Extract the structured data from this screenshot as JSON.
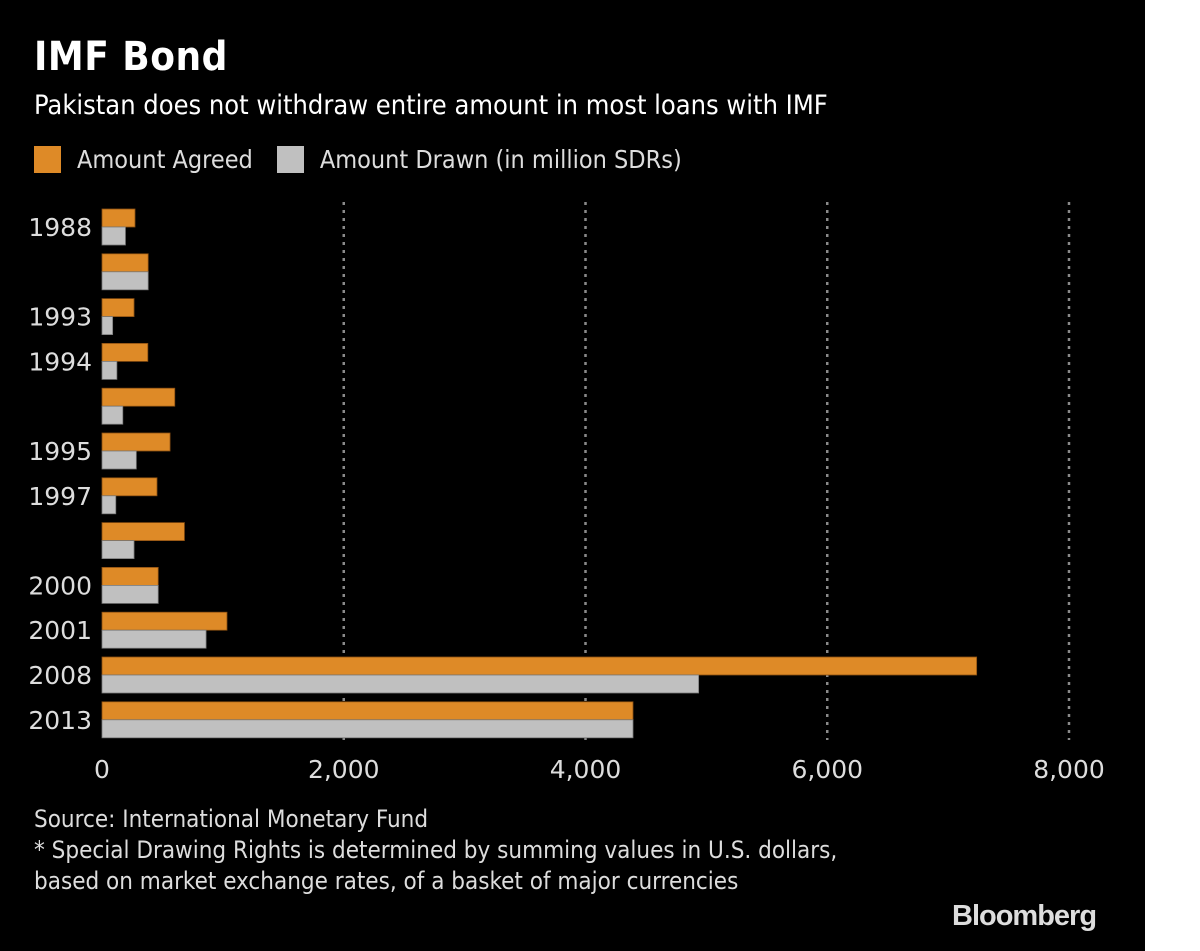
{
  "title": "IMF Bond",
  "subtitle": "Pakistan does not withdraw entire amount in most loans with IMF",
  "legend": [
    {
      "label": "Amount Agreed",
      "color": "#de8a27"
    },
    {
      "label": "Amount Drawn (in million SDRs)",
      "color": "#c0c0c0"
    }
  ],
  "footer": {
    "source": "Source: International Monetary Fund",
    "note": "* Special Drawing Rights is determined by summing values in U.S. dollars, based on market exchange rates, of a basket of major currencies"
  },
  "brand": "Bloomberg",
  "chart_data": {
    "type": "bar",
    "orientation": "horizontal",
    "title": "IMF Bond",
    "subtitle": "Pakistan does not withdraw entire amount in most loans with IMF",
    "xlabel": "",
    "ylabel": "",
    "categories": [
      "1988",
      "",
      "1993",
      "1994",
      "",
      "1995",
      "1997",
      "",
      "2000",
      "2001",
      "2008",
      "2013"
    ],
    "series": [
      {
        "name": "Amount Agreed",
        "color": "#de8a27",
        "values": [
          273,
          382,
          265,
          379,
          602,
          563,
          455,
          682,
          465,
          1034,
          7236,
          4393
        ]
      },
      {
        "name": "Amount Drawn (in million SDRs)",
        "color": "#c0c0c0",
        "values": [
          194,
          382,
          88,
          123,
          172,
          284,
          114,
          265,
          465,
          861,
          4936,
          4393
        ]
      }
    ],
    "xlim": [
      0,
      8000
    ],
    "xticks": [
      0,
      2000,
      4000,
      6000,
      8000
    ],
    "xtick_labels": [
      "0",
      "2,000",
      "4,000",
      "6,000",
      "8,000"
    ],
    "grid": "vertical dotted",
    "legend_position": "top-left"
  }
}
